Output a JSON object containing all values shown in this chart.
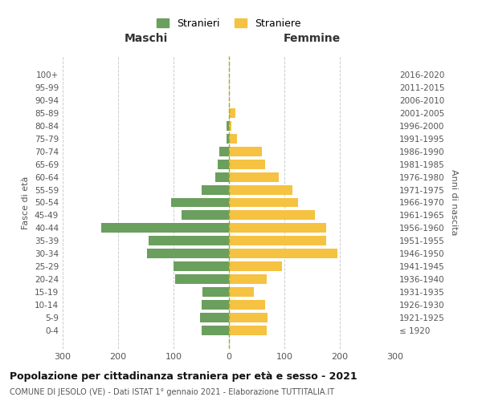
{
  "age_groups": [
    "100+",
    "95-99",
    "90-94",
    "85-89",
    "80-84",
    "75-79",
    "70-74",
    "65-69",
    "60-64",
    "55-59",
    "50-54",
    "45-49",
    "40-44",
    "35-39",
    "30-34",
    "25-29",
    "20-24",
    "15-19",
    "10-14",
    "5-9",
    "0-4"
  ],
  "birth_years": [
    "≤ 1920",
    "1921-1925",
    "1926-1930",
    "1931-1935",
    "1936-1940",
    "1941-1945",
    "1946-1950",
    "1951-1955",
    "1956-1960",
    "1961-1965",
    "1966-1970",
    "1971-1975",
    "1976-1980",
    "1981-1985",
    "1986-1990",
    "1991-1995",
    "1996-2000",
    "2001-2005",
    "2006-2010",
    "2011-2015",
    "2016-2020"
  ],
  "maschi": [
    0,
    0,
    0,
    0,
    5,
    5,
    18,
    20,
    25,
    50,
    105,
    85,
    230,
    145,
    148,
    100,
    97,
    48,
    50,
    52,
    50
  ],
  "femmine": [
    0,
    0,
    0,
    12,
    5,
    15,
    60,
    65,
    90,
    115,
    125,
    155,
    175,
    175,
    195,
    95,
    68,
    45,
    65,
    70,
    68
  ],
  "maschi_color": "#6a9f5e",
  "femmine_color": "#f5c242",
  "title": "Popolazione per cittadinanza straniera per età e sesso - 2021",
  "subtitle": "COMUNE DI JESOLO (VE) - Dati ISTAT 1° gennaio 2021 - Elaborazione TUTTITALIA.IT",
  "ylabel_left": "Fasce di età",
  "ylabel_right": "Anni di nascita",
  "xlabel_maschi": "Maschi",
  "xlabel_femmine": "Femmine",
  "legend_maschi": "Stranieri",
  "legend_femmine": "Straniere",
  "xlim": 300,
  "background_color": "#ffffff",
  "grid_color": "#cccccc"
}
